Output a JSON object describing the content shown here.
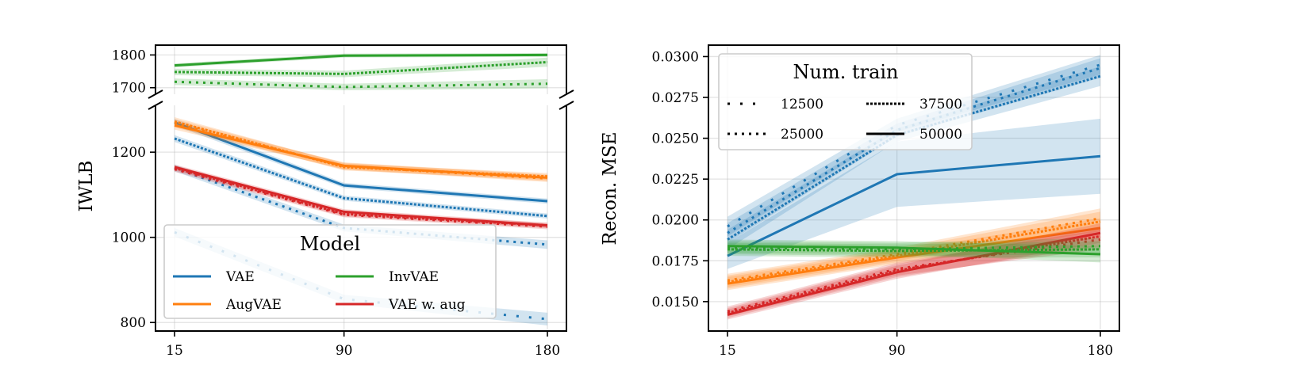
{
  "colors": {
    "VAE": "#1f77b4",
    "AugVAE": "#ff7f0e",
    "InvVAE": "#2ca02c",
    "VAE w. aug": "#d62728"
  },
  "caption_fragment": "",
  "chart_data": [
    {
      "type": "line",
      "ylabel": "IWLB",
      "xlabel": "",
      "x": [
        15,
        90,
        180
      ],
      "xticks": [
        "15",
        "90",
        "180"
      ],
      "broken_axis": true,
      "ylim_top": [
        1680,
        1830
      ],
      "ylim_bottom": [
        780,
        1310
      ],
      "yticks_top": [
        1700,
        1800
      ],
      "yticks_bottom": [
        800,
        1000,
        1200
      ],
      "ytick_labels_top": [
        "1700",
        "1800"
      ],
      "ytick_labels_bottom": [
        "800",
        "1000",
        "1200"
      ],
      "grid": true,
      "legend": {
        "title": "Model",
        "placement": "lower-left",
        "entries": [
          "VAE",
          "AugVAE",
          "InvVAE",
          "VAE w. aug"
        ]
      },
      "series": [
        {
          "model": "VAE",
          "num_train": 50000,
          "style": "solid",
          "values": [
            1270,
            1122,
            1085
          ],
          "band": [
            8,
            6,
            6
          ]
        },
        {
          "model": "VAE",
          "num_train": 37500,
          "style": "dense-dot",
          "values": [
            1232,
            1092,
            1050
          ],
          "band": [
            8,
            6,
            6
          ]
        },
        {
          "model": "VAE",
          "num_train": 25000,
          "style": "dot",
          "values": [
            1163,
            1022,
            983
          ],
          "band": [
            8,
            8,
            10
          ]
        },
        {
          "model": "VAE",
          "num_train": 12500,
          "style": "sparse-dot",
          "values": [
            1012,
            855,
            808
          ],
          "band": [
            10,
            10,
            15
          ]
        },
        {
          "model": "AugVAE",
          "num_train": 50000,
          "style": "solid",
          "values": [
            1263,
            1168,
            1140
          ],
          "band": [
            10,
            8,
            8
          ]
        },
        {
          "model": "AugVAE",
          "num_train": 37500,
          "style": "dense-dot",
          "values": [
            1272,
            1165,
            1143
          ],
          "band": [
            10,
            8,
            8
          ]
        },
        {
          "model": "AugVAE",
          "num_train": 25000,
          "style": "dot",
          "values": [
            1268,
            1167,
            1138
          ],
          "band": [
            10,
            8,
            8
          ]
        },
        {
          "model": "VAE w. aug",
          "num_train": 50000,
          "style": "solid",
          "values": [
            1165,
            1060,
            1028
          ],
          "band": [
            6,
            6,
            6
          ]
        },
        {
          "model": "VAE w. aug",
          "num_train": 37500,
          "style": "dense-dot",
          "values": [
            1163,
            1055,
            1028
          ],
          "band": [
            6,
            6,
            6
          ]
        },
        {
          "model": "VAE w. aug",
          "num_train": 25000,
          "style": "dot",
          "values": [
            1160,
            1053,
            1025
          ],
          "band": [
            6,
            6,
            6
          ]
        },
        {
          "model": "InvVAE",
          "num_train": 50000,
          "style": "solid",
          "values": [
            1768,
            1798,
            1800
          ],
          "band": [
            6,
            6,
            6
          ]
        },
        {
          "model": "InvVAE",
          "num_train": 37500,
          "style": "dense-dot",
          "values": [
            1748,
            1742,
            1778
          ],
          "band": [
            10,
            10,
            14
          ]
        },
        {
          "model": "InvVAE",
          "num_train": 25000,
          "style": "dot",
          "values": [
            1718,
            1702,
            1712
          ],
          "band": [
            10,
            10,
            14
          ]
        }
      ]
    },
    {
      "type": "line",
      "ylabel": "Recon. MSE",
      "xlabel": "",
      "x": [
        15,
        90,
        180
      ],
      "xticks": [
        "15",
        "90",
        "180"
      ],
      "ylim": [
        0.0132,
        0.0307
      ],
      "yticks": [
        0.015,
        0.0175,
        0.02,
        0.0225,
        0.025,
        0.0275,
        0.03
      ],
      "ytick_labels": [
        "0.0150",
        "0.0175",
        "0.0200",
        "0.0225",
        "0.0250",
        "0.0275",
        "0.0300"
      ],
      "grid": true,
      "legend": {
        "title": "Num. train",
        "placement": "upper-left",
        "entries": [
          "12500",
          "25000",
          "37500",
          "50000"
        ]
      },
      "series": [
        {
          "model": "VAE",
          "num_train": 50000,
          "style": "solid",
          "values": [
            0.0178,
            0.0228,
            0.0239
          ],
          "band": [
            0.0008,
            0.002,
            0.0023
          ]
        },
        {
          "model": "VAE",
          "num_train": 37500,
          "style": "dense-dot",
          "values": [
            0.0188,
            0.0252,
            0.0288
          ],
          "band": [
            0.0006,
            0.0004,
            0.0006
          ]
        },
        {
          "model": "VAE",
          "num_train": 25000,
          "style": "dot",
          "values": [
            0.0192,
            0.0255,
            0.0293
          ],
          "band": [
            0.0006,
            0.0004,
            0.0006
          ]
        },
        {
          "model": "VAE",
          "num_train": 12500,
          "style": "sparse-dot",
          "values": [
            0.0196,
            0.0258,
            0.0295
          ],
          "band": [
            0.0006,
            0.0004,
            0.0006
          ]
        },
        {
          "model": "AugVAE",
          "num_train": 50000,
          "style": "solid",
          "values": [
            0.0161,
            0.0177,
            0.0195
          ],
          "band": [
            0.0004,
            0.0004,
            0.0006
          ]
        },
        {
          "model": "AugVAE",
          "num_train": 37500,
          "style": "dense-dot",
          "values": [
            0.0162,
            0.0178,
            0.0199
          ],
          "band": [
            0.0004,
            0.0004,
            0.0006
          ]
        },
        {
          "model": "AugVAE",
          "num_train": 25000,
          "style": "dot",
          "values": [
            0.0163,
            0.0179,
            0.0201
          ],
          "band": [
            0.0004,
            0.0004,
            0.0006
          ]
        },
        {
          "model": "VAE w. aug",
          "num_train": 50000,
          "style": "solid",
          "values": [
            0.0142,
            0.0168,
            0.0192
          ],
          "band": [
            0.0003,
            0.0004,
            0.0006
          ]
        },
        {
          "model": "VAE w. aug",
          "num_train": 37500,
          "style": "dense-dot",
          "values": [
            0.0143,
            0.0169,
            0.019
          ],
          "band": [
            0.0003,
            0.0004,
            0.0006
          ]
        },
        {
          "model": "VAE w. aug",
          "num_train": 25000,
          "style": "dot",
          "values": [
            0.0144,
            0.017,
            0.0188
          ],
          "band": [
            0.0003,
            0.0004,
            0.0006
          ]
        },
        {
          "model": "InvVAE",
          "num_train": 50000,
          "style": "solid",
          "values": [
            0.0184,
            0.0183,
            0.0179
          ],
          "band": [
            0.0004,
            0.0004,
            0.0005
          ]
        },
        {
          "model": "InvVAE",
          "num_train": 37500,
          "style": "dense-dot",
          "values": [
            0.0182,
            0.0181,
            0.0182
          ],
          "band": [
            0.0004,
            0.0004,
            0.0005
          ]
        },
        {
          "model": "InvVAE",
          "num_train": 25000,
          "style": "dot",
          "values": [
            0.0183,
            0.0182,
            0.0184
          ],
          "band": [
            0.0004,
            0.0004,
            0.0005
          ]
        }
      ]
    }
  ]
}
